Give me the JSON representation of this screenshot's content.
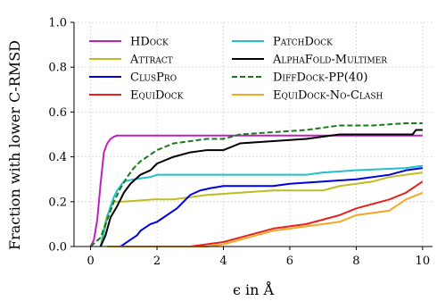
{
  "chart_data": {
    "type": "line",
    "xlabel": "ϵ in Å",
    "ylabel": "Fraction with lower C-RMSD",
    "xlim": [
      -0.5,
      10.3
    ],
    "ylim": [
      0,
      1.0
    ],
    "xticks": [
      0,
      2,
      4,
      6,
      8,
      10
    ],
    "yticks": [
      0.0,
      0.2,
      0.4,
      0.6,
      0.8,
      1.0
    ],
    "xtick_labels": [
      "0",
      "2",
      "4",
      "6",
      "8",
      "10"
    ],
    "ytick_labels": [
      "0.0",
      "0.2",
      "0.4",
      "0.6",
      "0.8",
      "1.0"
    ],
    "grid": true,
    "legend_placement": "top",
    "legend_columns": 2,
    "series": [
      {
        "name": "HDock",
        "color": "#c020c0",
        "dash": "solid",
        "points": [
          [
            0,
            0
          ],
          [
            0.1,
            0.03
          ],
          [
            0.2,
            0.12
          ],
          [
            0.3,
            0.28
          ],
          [
            0.4,
            0.42
          ],
          [
            0.5,
            0.46
          ],
          [
            0.6,
            0.48
          ],
          [
            0.7,
            0.49
          ],
          [
            0.8,
            0.495
          ],
          [
            10,
            0.495
          ]
        ]
      },
      {
        "name": "Attract",
        "color": "#bdbd22",
        "dash": "solid",
        "points": [
          [
            0.3,
            0
          ],
          [
            0.4,
            0.08
          ],
          [
            0.5,
            0.14
          ],
          [
            0.6,
            0.17
          ],
          [
            0.7,
            0.2
          ],
          [
            1.0,
            0.2
          ],
          [
            1.9,
            0.21
          ],
          [
            2.5,
            0.21
          ],
          [
            3.0,
            0.22
          ],
          [
            3.5,
            0.23
          ],
          [
            4.5,
            0.24
          ],
          [
            5.5,
            0.25
          ],
          [
            7.0,
            0.25
          ],
          [
            7.5,
            0.27
          ],
          [
            8.5,
            0.29
          ],
          [
            9.0,
            0.31
          ],
          [
            9.5,
            0.32
          ],
          [
            10,
            0.33
          ]
        ]
      },
      {
        "name": "ClusPro",
        "color": "#0000e0",
        "dash": "solid",
        "points": [
          [
            0.9,
            0
          ],
          [
            1.1,
            0.02
          ],
          [
            1.3,
            0.04
          ],
          [
            1.4,
            0.05
          ],
          [
            1.5,
            0.07
          ],
          [
            1.8,
            0.1
          ],
          [
            2.0,
            0.11
          ],
          [
            2.3,
            0.14
          ],
          [
            2.6,
            0.17
          ],
          [
            2.8,
            0.2
          ],
          [
            3.0,
            0.23
          ],
          [
            3.3,
            0.25
          ],
          [
            3.6,
            0.26
          ],
          [
            4.0,
            0.27
          ],
          [
            5.5,
            0.27
          ],
          [
            6.0,
            0.28
          ],
          [
            7.0,
            0.29
          ],
          [
            8.0,
            0.3
          ],
          [
            9.0,
            0.32
          ],
          [
            9.5,
            0.34
          ],
          [
            10,
            0.35
          ]
        ]
      },
      {
        "name": "EquiDock",
        "color": "#e8201c",
        "dash": "solid",
        "points": [
          [
            0.5,
            0
          ],
          [
            3.0,
            0
          ],
          [
            3.5,
            0.01
          ],
          [
            4.0,
            0.02
          ],
          [
            4.5,
            0.04
          ],
          [
            5.0,
            0.06
          ],
          [
            5.5,
            0.08
          ],
          [
            6.0,
            0.09
          ],
          [
            6.5,
            0.1
          ],
          [
            7.0,
            0.12
          ],
          [
            7.5,
            0.14
          ],
          [
            8.0,
            0.17
          ],
          [
            8.5,
            0.19
          ],
          [
            9.0,
            0.21
          ],
          [
            9.5,
            0.24
          ],
          [
            10,
            0.29
          ]
        ]
      },
      {
        "name": "PatchDock",
        "color": "#22c0cc",
        "dash": "solid",
        "points": [
          [
            0.3,
            0
          ],
          [
            0.4,
            0.06
          ],
          [
            0.5,
            0.13
          ],
          [
            0.6,
            0.18
          ],
          [
            0.7,
            0.22
          ],
          [
            0.8,
            0.25
          ],
          [
            0.9,
            0.27
          ],
          [
            1.0,
            0.29
          ],
          [
            1.3,
            0.3
          ],
          [
            1.8,
            0.31
          ],
          [
            2.0,
            0.32
          ],
          [
            6.5,
            0.32
          ],
          [
            7.0,
            0.33
          ],
          [
            8.0,
            0.34
          ],
          [
            9.5,
            0.35
          ],
          [
            10,
            0.36
          ]
        ]
      },
      {
        "name": "AlphaFold-Multimer",
        "color": "#000000",
        "dash": "solid",
        "points": [
          [
            0.3,
            0
          ],
          [
            0.45,
            0.05
          ],
          [
            0.6,
            0.13
          ],
          [
            0.8,
            0.18
          ],
          [
            1.0,
            0.24
          ],
          [
            1.2,
            0.28
          ],
          [
            1.5,
            0.32
          ],
          [
            1.8,
            0.34
          ],
          [
            2.0,
            0.37
          ],
          [
            2.5,
            0.4
          ],
          [
            3.0,
            0.42
          ],
          [
            3.5,
            0.43
          ],
          [
            4.0,
            0.43
          ],
          [
            4.5,
            0.46
          ],
          [
            5.5,
            0.47
          ],
          [
            6.5,
            0.48
          ],
          [
            7.0,
            0.49
          ],
          [
            7.5,
            0.5
          ],
          [
            9.7,
            0.5
          ],
          [
            9.8,
            0.52
          ],
          [
            10,
            0.52
          ]
        ]
      },
      {
        "name": "DiffDock-PP(40)",
        "color": "#1a7a1a",
        "dash": "dashed",
        "points": [
          [
            0,
            0
          ],
          [
            0.3,
            0.04
          ],
          [
            0.5,
            0.12
          ],
          [
            0.7,
            0.2
          ],
          [
            0.9,
            0.26
          ],
          [
            1.1,
            0.31
          ],
          [
            1.3,
            0.35
          ],
          [
            1.5,
            0.38
          ],
          [
            1.8,
            0.41
          ],
          [
            2.0,
            0.43
          ],
          [
            2.5,
            0.46
          ],
          [
            3.0,
            0.47
          ],
          [
            3.5,
            0.48
          ],
          [
            4.0,
            0.48
          ],
          [
            4.5,
            0.5
          ],
          [
            5.5,
            0.51
          ],
          [
            6.5,
            0.52
          ],
          [
            7.5,
            0.54
          ],
          [
            8.5,
            0.54
          ],
          [
            9.5,
            0.55
          ],
          [
            10,
            0.55
          ]
        ]
      },
      {
        "name": "EquiDock-No-Clash",
        "color": "#f5a623",
        "dash": "solid",
        "points": [
          [
            0.5,
            0
          ],
          [
            3.5,
            0
          ],
          [
            4.0,
            0.01
          ],
          [
            4.5,
            0.03
          ],
          [
            5.0,
            0.05
          ],
          [
            5.5,
            0.07
          ],
          [
            6.0,
            0.08
          ],
          [
            6.5,
            0.09
          ],
          [
            7.0,
            0.1
          ],
          [
            7.5,
            0.11
          ],
          [
            8.0,
            0.14
          ],
          [
            8.5,
            0.15
          ],
          [
            9.0,
            0.16
          ],
          [
            9.5,
            0.21
          ],
          [
            10,
            0.24
          ]
        ]
      }
    ]
  }
}
